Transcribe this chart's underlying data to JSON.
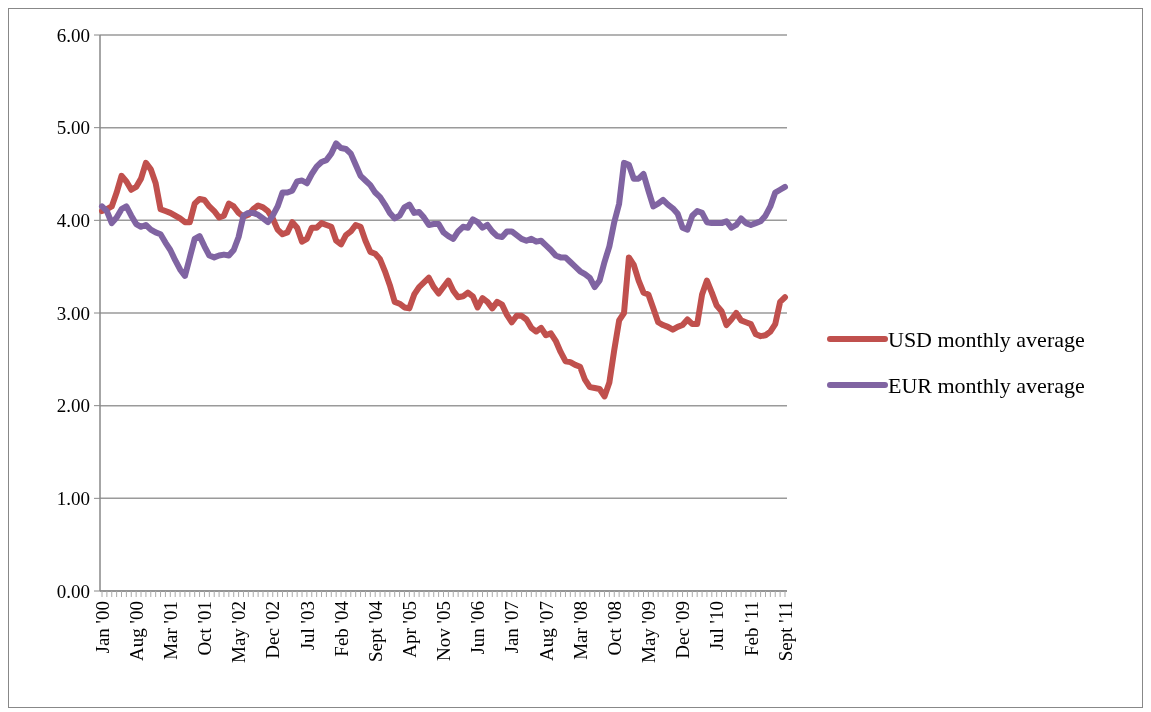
{
  "chart_data": {
    "type": "line",
    "categories": [
      "Jan '00",
      null,
      null,
      null,
      null,
      null,
      null,
      "Aug '00",
      null,
      null,
      null,
      null,
      null,
      null,
      "Mar '01",
      null,
      null,
      null,
      null,
      null,
      null,
      "Oct '01",
      null,
      null,
      null,
      null,
      null,
      null,
      "May '02",
      null,
      null,
      null,
      null,
      null,
      null,
      "Dec '02",
      null,
      null,
      null,
      null,
      null,
      null,
      "Jul '03",
      null,
      null,
      null,
      null,
      null,
      null,
      "Feb '04",
      null,
      null,
      null,
      null,
      null,
      null,
      "Sept '04",
      null,
      null,
      null,
      null,
      null,
      null,
      "Apr '05",
      null,
      null,
      null,
      null,
      null,
      null,
      "Nov '05",
      null,
      null,
      null,
      null,
      null,
      null,
      "Jun '06",
      null,
      null,
      null,
      null,
      null,
      null,
      "Jan '07",
      null,
      null,
      null,
      null,
      null,
      null,
      "Aug '07",
      null,
      null,
      null,
      null,
      null,
      null,
      "Mar '08",
      null,
      null,
      null,
      null,
      null,
      null,
      "Oct '08",
      null,
      null,
      null,
      null,
      null,
      null,
      "May '09",
      null,
      null,
      null,
      null,
      null,
      null,
      "Dec '09",
      null,
      null,
      null,
      null,
      null,
      null,
      "Jul '10",
      null,
      null,
      null,
      null,
      null,
      null,
      "Feb '11",
      null,
      null,
      null,
      null,
      null,
      null,
      "Sept '11"
    ],
    "series": [
      {
        "name": "USD monthly average",
        "color": "#c0504d",
        "values": [
          4.1,
          4.12,
          4.15,
          4.3,
          4.48,
          4.42,
          4.33,
          4.36,
          4.45,
          4.62,
          4.55,
          4.4,
          4.12,
          4.1,
          4.08,
          4.05,
          4.02,
          3.98,
          3.98,
          4.18,
          4.23,
          4.22,
          4.15,
          4.1,
          4.03,
          4.05,
          4.18,
          4.15,
          4.08,
          4.04,
          4.06,
          4.12,
          4.16,
          4.14,
          4.1,
          4.02,
          3.9,
          3.85,
          3.87,
          3.98,
          3.92,
          3.77,
          3.8,
          3.92,
          3.92,
          3.97,
          3.95,
          3.93,
          3.78,
          3.74,
          3.84,
          3.88,
          3.95,
          3.93,
          3.78,
          3.66,
          3.64,
          3.58,
          3.45,
          3.3,
          3.12,
          3.1,
          3.06,
          3.05,
          3.2,
          3.28,
          3.33,
          3.38,
          3.28,
          3.21,
          3.28,
          3.35,
          3.24,
          3.17,
          3.18,
          3.22,
          3.18,
          3.06,
          3.16,
          3.12,
          3.05,
          3.12,
          3.09,
          2.98,
          2.9,
          2.97,
          2.97,
          2.93,
          2.84,
          2.8,
          2.84,
          2.76,
          2.78,
          2.7,
          2.58,
          2.48,
          2.47,
          2.44,
          2.42,
          2.28,
          2.2,
          2.19,
          2.18,
          2.1,
          2.25,
          2.6,
          2.92,
          3.0,
          3.6,
          3.52,
          3.35,
          3.22,
          3.2,
          3.05,
          2.9,
          2.87,
          2.85,
          2.82,
          2.85,
          2.87,
          2.93,
          2.88,
          2.88,
          3.2,
          3.35,
          3.22,
          3.08,
          3.02,
          2.87,
          2.93,
          3.0,
          2.92,
          2.9,
          2.88,
          2.77,
          2.75,
          2.76,
          2.8,
          2.88,
          3.12,
          3.17
        ]
      },
      {
        "name": "EUR monthly average",
        "color": "#8064a2",
        "values": [
          4.15,
          4.1,
          3.97,
          4.03,
          4.12,
          4.15,
          4.05,
          3.96,
          3.93,
          3.95,
          3.9,
          3.87,
          3.85,
          3.76,
          3.68,
          3.57,
          3.47,
          3.4,
          3.6,
          3.8,
          3.83,
          3.72,
          3.62,
          3.6,
          3.62,
          3.63,
          3.62,
          3.68,
          3.82,
          4.05,
          4.08,
          4.08,
          4.06,
          4.02,
          3.98,
          4.05,
          4.15,
          4.3,
          4.3,
          4.32,
          4.42,
          4.43,
          4.4,
          4.5,
          4.58,
          4.63,
          4.65,
          4.72,
          4.83,
          4.78,
          4.77,
          4.72,
          4.6,
          4.48,
          4.43,
          4.38,
          4.3,
          4.25,
          4.17,
          4.08,
          4.02,
          4.05,
          4.14,
          4.17,
          4.08,
          4.09,
          4.03,
          3.95,
          3.96,
          3.96,
          3.87,
          3.83,
          3.8,
          3.88,
          3.93,
          3.92,
          4.01,
          3.98,
          3.92,
          3.95,
          3.88,
          3.83,
          3.82,
          3.88,
          3.88,
          3.84,
          3.8,
          3.78,
          3.8,
          3.77,
          3.78,
          3.73,
          3.68,
          3.62,
          3.6,
          3.6,
          3.55,
          3.5,
          3.45,
          3.42,
          3.38,
          3.28,
          3.35,
          3.55,
          3.72,
          3.98,
          4.18,
          4.62,
          4.6,
          4.45,
          4.45,
          4.5,
          4.32,
          4.15,
          4.18,
          4.22,
          4.17,
          4.13,
          4.07,
          3.92,
          3.9,
          4.05,
          4.1,
          4.08,
          3.98,
          3.97,
          3.97,
          3.97,
          3.99,
          3.92,
          3.95,
          4.02,
          3.97,
          3.95,
          3.97,
          3.99,
          4.05,
          4.15,
          4.3,
          4.33,
          4.36
        ]
      }
    ],
    "ylim": [
      0,
      6
    ],
    "yticks": [
      {
        "value": 0,
        "label": "0.00"
      },
      {
        "value": 1,
        "label": "1.00"
      },
      {
        "value": 2,
        "label": "2.00"
      },
      {
        "value": 3,
        "label": "3.00"
      },
      {
        "value": 4,
        "label": "4.00"
      },
      {
        "value": 5,
        "label": "5.00"
      },
      {
        "value": 6,
        "label": "6.00"
      }
    ],
    "grid": "y",
    "legend": "right"
  }
}
